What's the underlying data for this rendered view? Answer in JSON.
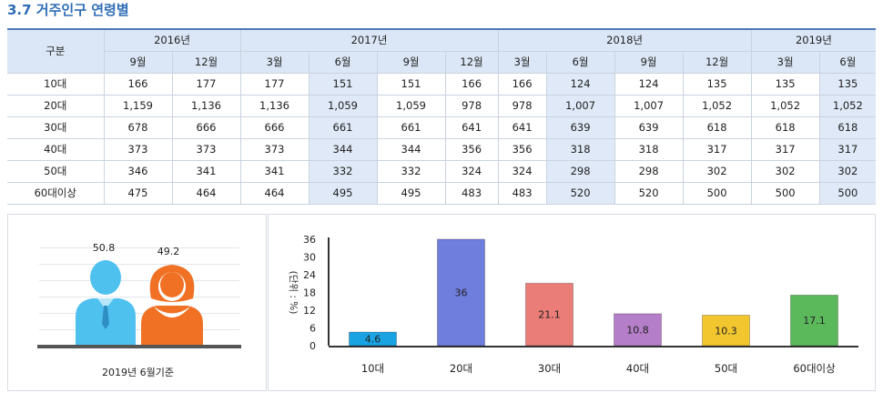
{
  "title": "3.7 거주인구 연령별",
  "table": {
    "corner_label": "구분",
    "years": [
      {
        "label": "2016년",
        "span": 2
      },
      {
        "label": "2017년",
        "span": 4
      },
      {
        "label": "2018년",
        "span": 4
      },
      {
        "label": "2019년",
        "span": 2
      }
    ],
    "months": [
      "9월",
      "12월",
      "3월",
      "6월",
      "9월",
      "12월",
      "3월",
      "6월",
      "9월",
      "12월",
      "3월",
      "6월"
    ],
    "highlight_cols": [
      3,
      7,
      11
    ],
    "rows": [
      {
        "label": "10대",
        "values": [
          "166",
          "177",
          "177",
          "151",
          "151",
          "166",
          "166",
          "124",
          "124",
          "135",
          "135",
          "135"
        ]
      },
      {
        "label": "20대",
        "values": [
          "1,159",
          "1,136",
          "1,136",
          "1,059",
          "1,059",
          "978",
          "978",
          "1,007",
          "1,007",
          "1,052",
          "1,052",
          "1,052"
        ]
      },
      {
        "label": "30대",
        "values": [
          "678",
          "666",
          "666",
          "661",
          "661",
          "641",
          "641",
          "639",
          "639",
          "618",
          "618",
          "618"
        ]
      },
      {
        "label": "40대",
        "values": [
          "373",
          "373",
          "373",
          "344",
          "344",
          "356",
          "356",
          "318",
          "318",
          "317",
          "317",
          "317"
        ]
      },
      {
        "label": "50대",
        "values": [
          "346",
          "341",
          "341",
          "332",
          "332",
          "324",
          "324",
          "298",
          "298",
          "302",
          "302",
          "302"
        ]
      },
      {
        "label": "60대이상",
        "values": [
          "475",
          "464",
          "464",
          "495",
          "495",
          "483",
          "483",
          "520",
          "520",
          "500",
          "500",
          "500"
        ]
      }
    ]
  },
  "gender_panel": {
    "male_value": "50.8",
    "female_value": "49.2",
    "male_color": "#4fc1ef",
    "female_color": "#f07124",
    "caption": "2019년 6월기준"
  },
  "chart_data": {
    "type": "bar",
    "categories": [
      "10대",
      "20대",
      "30대",
      "40대",
      "50대",
      "60대이상"
    ],
    "values": [
      4.6,
      36,
      21.1,
      10.8,
      10.3,
      17.1
    ],
    "value_labels": [
      "4.6",
      "36",
      "21.1",
      "10.8",
      "10.3",
      "17.1"
    ],
    "colors": [
      "#1aa3e3",
      "#6f7ddc",
      "#ea7d78",
      "#b47ec8",
      "#f2c62f",
      "#5bb95c"
    ],
    "ylabel": "(단위 : %)",
    "ylim": [
      0,
      36
    ],
    "yticks": [
      0,
      6,
      12,
      18,
      24,
      30,
      36
    ],
    "grid": false,
    "title": "",
    "xlabel": ""
  }
}
